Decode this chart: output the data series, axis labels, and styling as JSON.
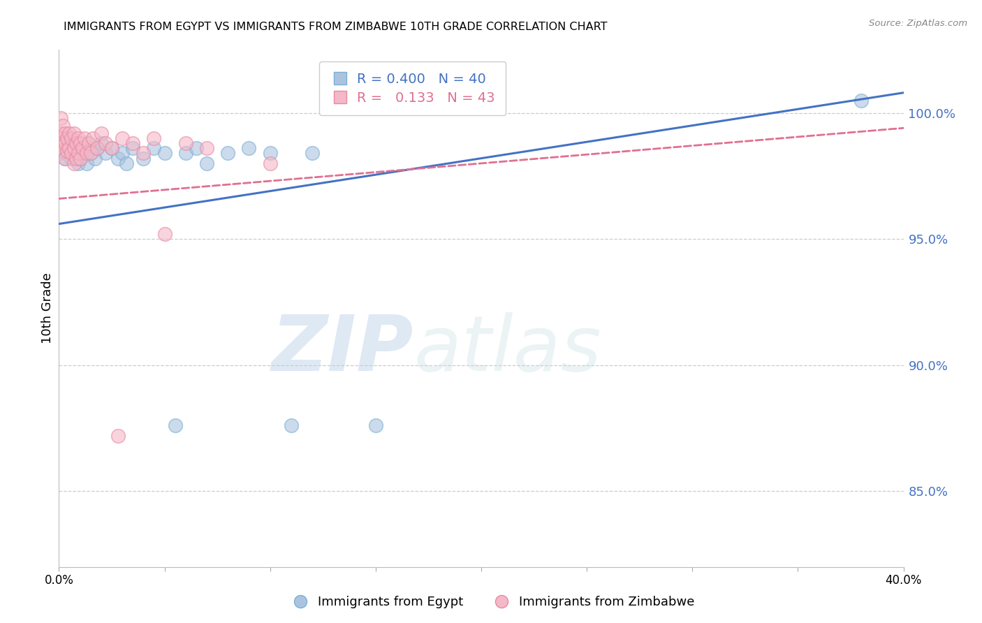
{
  "title": "IMMIGRANTS FROM EGYPT VS IMMIGRANTS FROM ZIMBABWE 10TH GRADE CORRELATION CHART",
  "source": "Source: ZipAtlas.com",
  "ylabel": "10th Grade",
  "y_ticks": [
    0.85,
    0.9,
    0.95,
    1.0
  ],
  "y_tick_labels": [
    "85.0%",
    "90.0%",
    "95.0%",
    "100.0%"
  ],
  "x_lim": [
    0.0,
    0.4
  ],
  "y_lim": [
    0.82,
    1.025
  ],
  "egypt_color": "#aac4e0",
  "egypt_edge_color": "#7bafd4",
  "zimbabwe_color": "#f5b8c8",
  "zimbabwe_edge_color": "#e88aa0",
  "egypt_line_color": "#4472c4",
  "zimbabwe_line_color": "#e07090",
  "egypt_R": 0.4,
  "egypt_N": 40,
  "zimbabwe_R": 0.133,
  "zimbabwe_N": 43,
  "legend_label_egypt": "Immigrants from Egypt",
  "legend_label_zimbabwe": "Immigrants from Zimbabwe",
  "watermark_zip": "ZIP",
  "watermark_atlas": "atlas",
  "egypt_x": [
    0.001,
    0.001,
    0.002,
    0.003,
    0.003,
    0.004,
    0.005,
    0.006,
    0.007,
    0.008,
    0.009,
    0.01,
    0.011,
    0.012,
    0.013,
    0.014,
    0.015,
    0.017,
    0.018,
    0.02,
    0.022,
    0.025,
    0.028,
    0.03,
    0.032,
    0.035,
    0.04,
    0.045,
    0.05,
    0.055,
    0.06,
    0.065,
    0.07,
    0.08,
    0.09,
    0.1,
    0.11,
    0.12,
    0.15,
    0.38
  ],
  "egypt_y": [
    0.99,
    0.984,
    0.986,
    0.988,
    0.982,
    0.99,
    0.985,
    0.982,
    0.988,
    0.985,
    0.98,
    0.982,
    0.984,
    0.986,
    0.98,
    0.988,
    0.984,
    0.982,
    0.986,
    0.988,
    0.984,
    0.986,
    0.982,
    0.984,
    0.98,
    0.986,
    0.982,
    0.986,
    0.984,
    0.876,
    0.984,
    0.986,
    0.98,
    0.984,
    0.986,
    0.984,
    0.876,
    0.984,
    0.876,
    1.005
  ],
  "zimbabwe_x": [
    0.001,
    0.001,
    0.001,
    0.002,
    0.002,
    0.002,
    0.003,
    0.003,
    0.003,
    0.004,
    0.004,
    0.005,
    0.005,
    0.006,
    0.006,
    0.007,
    0.007,
    0.007,
    0.008,
    0.008,
    0.009,
    0.009,
    0.01,
    0.01,
    0.011,
    0.012,
    0.013,
    0.014,
    0.015,
    0.016,
    0.018,
    0.02,
    0.022,
    0.025,
    0.028,
    0.03,
    0.035,
    0.04,
    0.045,
    0.05,
    0.06,
    0.07,
    0.1
  ],
  "zimbabwe_y": [
    0.998,
    0.992,
    0.988,
    0.995,
    0.99,
    0.985,
    0.992,
    0.988,
    0.982,
    0.99,
    0.985,
    0.992,
    0.986,
    0.99,
    0.984,
    0.992,
    0.986,
    0.98,
    0.988,
    0.982,
    0.99,
    0.984,
    0.988,
    0.982,
    0.986,
    0.99,
    0.984,
    0.988,
    0.984,
    0.99,
    0.986,
    0.992,
    0.988,
    0.986,
    0.872,
    0.99,
    0.988,
    0.984,
    0.99,
    0.952,
    0.988,
    0.986,
    0.98
  ],
  "egypt_line_x0": 0.0,
  "egypt_line_y0": 0.956,
  "egypt_line_x1": 0.4,
  "egypt_line_y1": 1.008,
  "zimbabwe_line_x0": 0.0,
  "zimbabwe_line_y0": 0.966,
  "zimbabwe_line_x1": 0.4,
  "zimbabwe_line_y1": 0.994
}
